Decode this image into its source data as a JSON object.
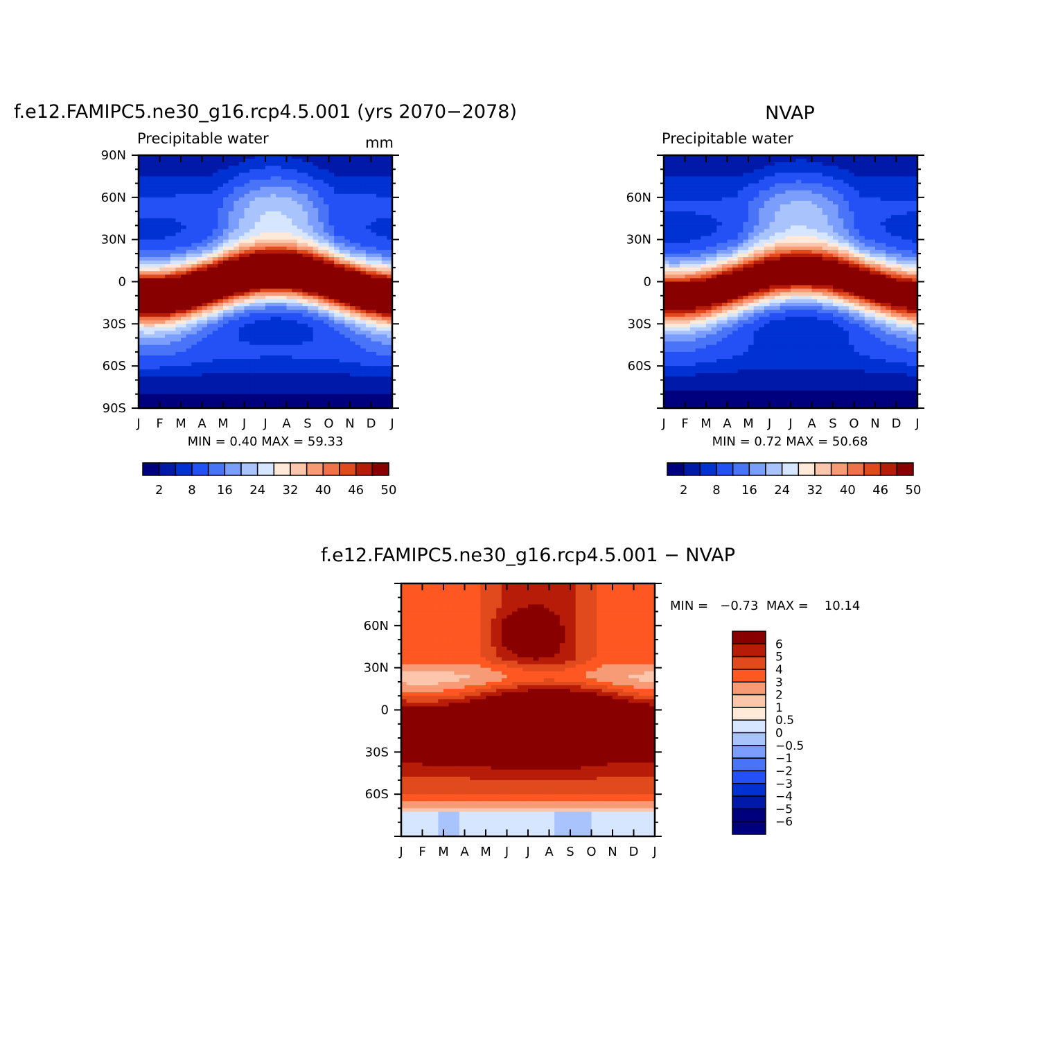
{
  "figure": {
    "months": [
      "J",
      "F",
      "M",
      "A",
      "M",
      "J",
      "J",
      "A",
      "S",
      "O",
      "N",
      "D",
      "J"
    ]
  },
  "chart_data": [
    {
      "type": "heatmap",
      "title": "f.e12.FAMIPC5.ne30_g16.rcp4.5.001 (yrs 2070−2078)",
      "subtitle": "Precipitable water",
      "units": "mm",
      "x_ticks": [
        "J",
        "F",
        "M",
        "A",
        "M",
        "J",
        "J",
        "A",
        "S",
        "O",
        "N",
        "D",
        "J"
      ],
      "y_ticks": [
        "90N",
        "60N",
        "30N",
        "0",
        "30S",
        "60S",
        "90S"
      ],
      "ylim": [
        -90,
        90
      ],
      "stats": "MIN =    0.40  MAX =    59.33",
      "colorbar": {
        "tick_labels": [
          "2",
          "8",
          "16",
          "24",
          "32",
          "40",
          "46",
          "50"
        ],
        "colors": [
          "#00007f",
          "#0019a8",
          "#0031d2",
          "#2451f5",
          "#4a74f8",
          "#7b9dfb",
          "#a9c4fd",
          "#d5e6fe",
          "#ffe9d8",
          "#fcc6ac",
          "#f79b76",
          "#f07248",
          "#e04a1c",
          "#b71c08",
          "#880000"
        ]
      },
      "model": {
        "eq_amp": 9,
        "eq_width": 13,
        "eq_peak": 58,
        "base_south": 1.5,
        "base_north": 3.5,
        "ex_north": 12,
        "ex_south": 9,
        "shift_nh_extra": 10,
        "nh_summer_boost": 18,
        "trop_n_width": 30,
        "trop_s_width": 28
      }
    },
    {
      "type": "heatmap",
      "title": "NVAP",
      "subtitle": "Precipitable water",
      "x_ticks": [
        "J",
        "F",
        "M",
        "A",
        "M",
        "J",
        "J",
        "A",
        "S",
        "O",
        "N",
        "D",
        "J"
      ],
      "y_ticks": [
        "60N",
        "30N",
        "0",
        "30S",
        "60S"
      ],
      "ylim": [
        -90,
        90
      ],
      "stats": "MIN =    0.72  MAX =    50.68",
      "colorbar": {
        "tick_labels": [
          "2",
          "8",
          "16",
          "24",
          "32",
          "40",
          "46",
          "50"
        ],
        "colors": [
          "#00007f",
          "#0019a8",
          "#0031d2",
          "#2451f5",
          "#4a74f8",
          "#7b9dfb",
          "#a9c4fd",
          "#d5e6fe",
          "#ffe9d8",
          "#fcc6ac",
          "#f79b76",
          "#f07248",
          "#e04a1c",
          "#b71c08",
          "#880000"
        ]
      },
      "model": {
        "eq_amp": 6,
        "eq_width": 13,
        "eq_peak": 48,
        "base_south": 1.2,
        "base_north": 3.0,
        "ex_north": 12,
        "ex_south": 8,
        "shift_nh_extra": 8,
        "nh_summer_boost": 14,
        "trop_n_width": 30,
        "trop_s_width": 28
      }
    },
    {
      "type": "heatmap",
      "title": "f.e12.FAMIPC5.ne30_g16.rcp4.5.001  −  NVAP",
      "x_ticks": [
        "J",
        "F",
        "M",
        "A",
        "M",
        "J",
        "J",
        "A",
        "S",
        "O",
        "N",
        "D",
        "J"
      ],
      "y_ticks": [
        "60N",
        "30N",
        "0",
        "30S",
        "60S"
      ],
      "ylim": [
        -90,
        90
      ],
      "stats": "MIN =   −0.73  MAX =    10.14",
      "colorbar": {
        "tick_labels": [
          "6",
          "5",
          "4",
          "3",
          "2",
          "1",
          "0.5",
          "0",
          "−0.5",
          "−1",
          "−2",
          "−3",
          "−4",
          "−5",
          "−6"
        ],
        "colors": [
          "#880000",
          "#b71c08",
          "#e04a1c",
          "#fe5722",
          "#f79b76",
          "#fcc6ac",
          "#ffe9d8",
          "#d5e6fe",
          "#a9c4fd",
          "#7b9dfb",
          "#4a74f8",
          "#2451f5",
          "#0031d2",
          "#0019a8",
          "#00007f"
        ]
      }
    }
  ]
}
